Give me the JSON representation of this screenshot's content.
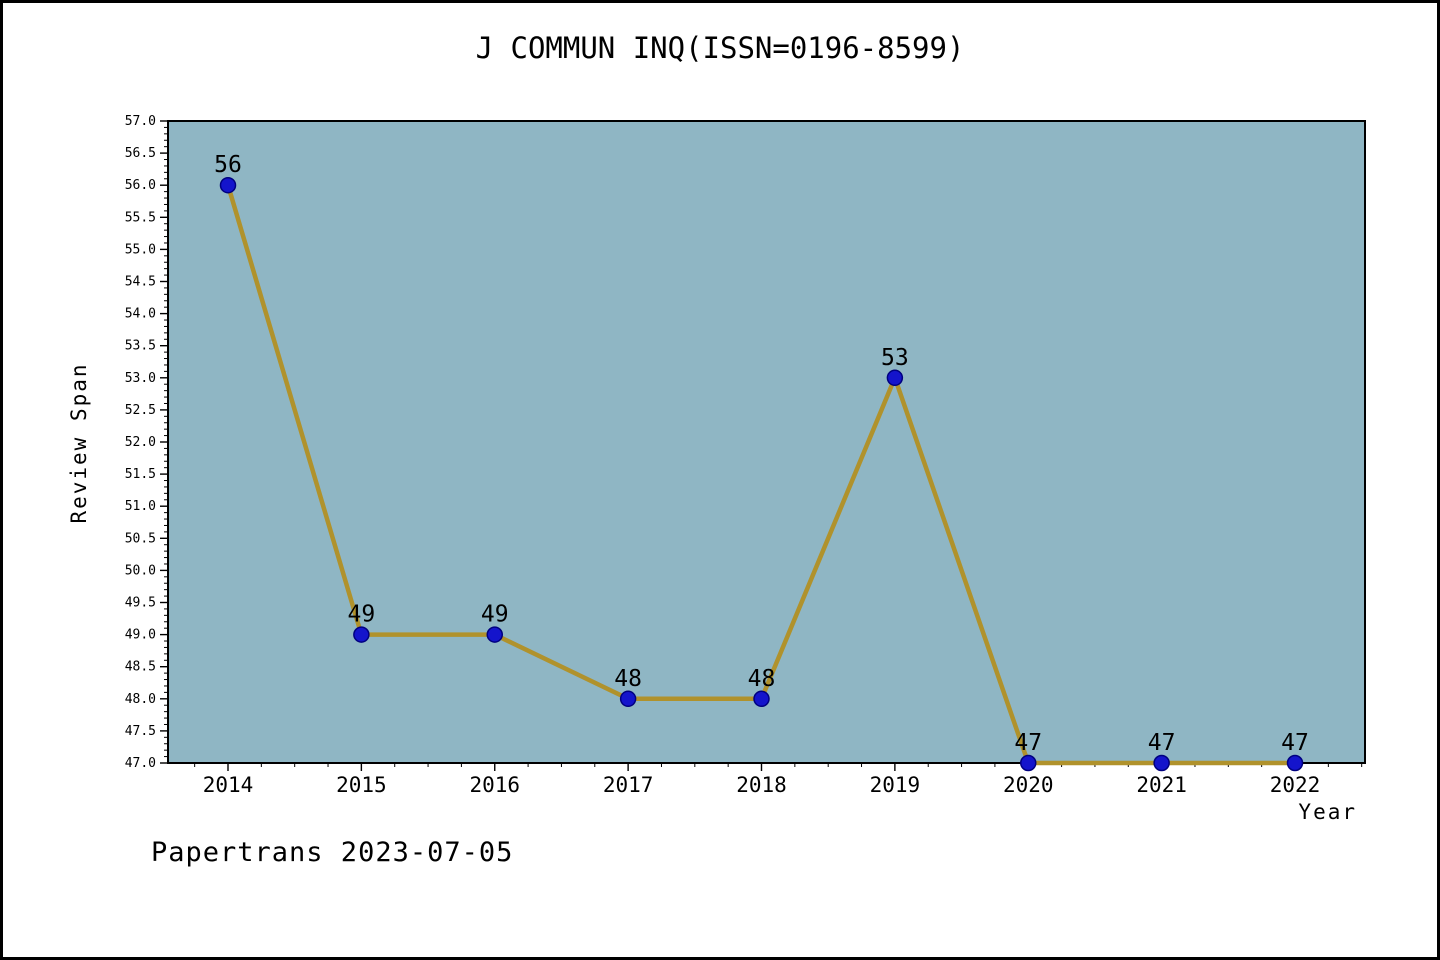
{
  "chart_data": {
    "type": "line",
    "title": "J COMMUN INQ(ISSN=0196-8599)",
    "xlabel": "Year",
    "ylabel": "Review Span",
    "categories": [
      "2014",
      "2015",
      "2016",
      "2017",
      "2018",
      "2019",
      "2020",
      "2021",
      "2022"
    ],
    "values": [
      56,
      49,
      49,
      48,
      48,
      53,
      47,
      47,
      47
    ],
    "point_labels": [
      "56",
      "49",
      "49",
      "48",
      "48",
      "53",
      "47",
      "47",
      "47"
    ],
    "ylim": [
      47.0,
      57.0
    ],
    "ytick_step": 0.5,
    "ytick_minor_step": 0.1,
    "grid": false,
    "legend": "none",
    "colors": {
      "plot_background": "#8fb6c4",
      "line": "#b0922c",
      "marker_fill": "#1414cc",
      "marker_edge": "#000080",
      "axis": "#000000",
      "text": "#000000"
    }
  },
  "footer": {
    "text": "Papertrans 2023-07-05"
  }
}
